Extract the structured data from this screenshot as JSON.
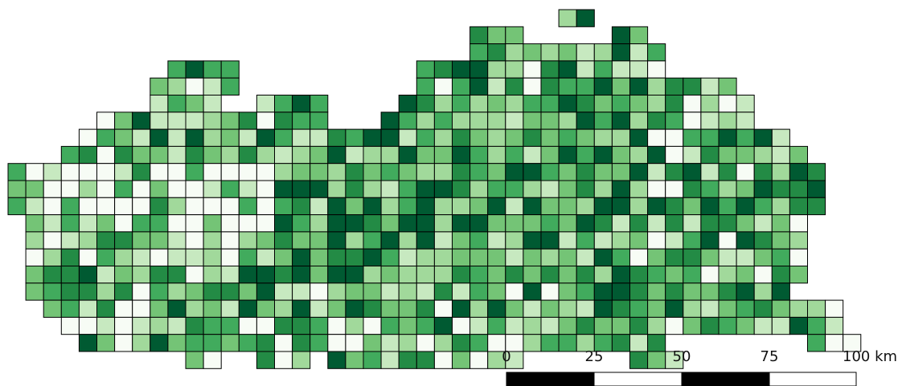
{
  "map": {
    "class_colors": [
      "#f7fcf5",
      "#c7e9c0",
      "#a1d99b",
      "#74c476",
      "#41ab5d",
      "#238b45",
      "#005a32"
    ],
    "cell_outline_color": "#000000"
  },
  "scale_bar": {
    "tick_labels": [
      "0",
      "25",
      "50",
      "75",
      "100 km"
    ],
    "segment_colors": [
      "#000000",
      "#ffffff",
      "#000000",
      "#ffffff"
    ]
  }
}
